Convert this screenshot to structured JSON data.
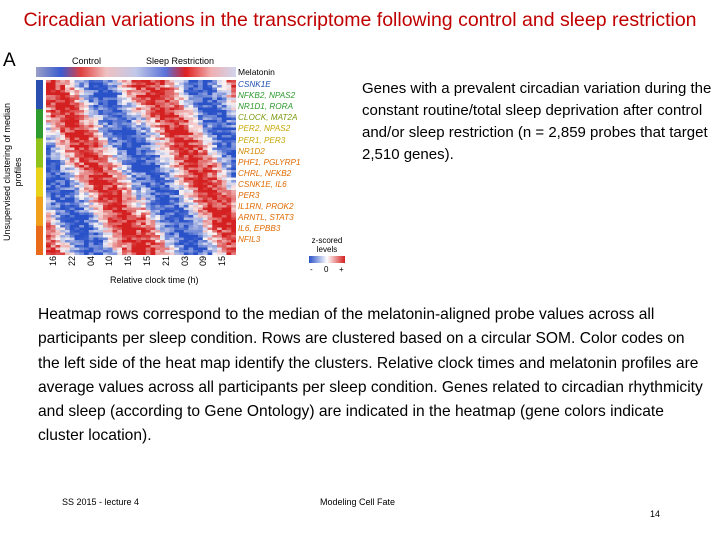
{
  "slide": {
    "title": "Circadian variations in the transcriptome following control and sleep restriction",
    "panel_letter": "A",
    "right_text": "Genes with a prevalent circadian variation during the constant routine/total sleep deprivation after control and/or sleep restriction (n = 2,859 probes that target 2,510 genes).",
    "main_text": "Heatmap rows correspond to the median of the melatonin-aligned probe values across all participants per sleep condition. Rows are clustered based on a circular SOM. Color codes on the left side of the heat map identify the clusters. Relative clock times and melatonin profiles are average values across all participants per sleep condition. Genes related to circadian rhythmicity and sleep (according to Gene Ontology) are indicated in the heatmap (gene colors indicate cluster location).",
    "footer_left": "SS 2015 - lecture 4",
    "footer_center": "Modeling Cell Fate",
    "page_number": "14"
  },
  "figure": {
    "col_labels": [
      "Control",
      "Sleep Restriction"
    ],
    "melatonin_label": "Melatonin",
    "y_axis_title": "Unsupervised clustering of median profiles",
    "x_axis_title": "Relative clock time (h)",
    "x_ticks": [
      "16",
      "22",
      "04",
      "10",
      "16",
      "15",
      "21",
      "03",
      "09",
      "15"
    ],
    "legend_title": "z-scored levels",
    "legend_ticks": [
      "-",
      "0",
      "+"
    ],
    "genes": [
      {
        "label": "CSNK1E",
        "color": "#1f4fb0"
      },
      {
        "label": "NFKB2, NPAS2",
        "color": "#2d9a2d"
      },
      {
        "label": "NR1D1, RORA",
        "color": "#2d9a2d"
      },
      {
        "label": "CLOCK, MAT2A",
        "color": "#7a9a10"
      },
      {
        "label": "PER2, NPAS2",
        "color": "#c8a800"
      },
      {
        "label": "PER1, PER3",
        "color": "#c8a800"
      },
      {
        "label": "NR1D2",
        "color": "#d48a00"
      },
      {
        "label": "PHF1, PGLYRP1",
        "color": "#e06a00"
      },
      {
        "label": "CHRL, NFKB2",
        "color": "#e06a00"
      },
      {
        "label": "CSNK1E, IL6",
        "color": "#e06a00"
      },
      {
        "label": "PER3",
        "color": "#e06a00"
      },
      {
        "label": "IL1RN, PROK2",
        "color": "#e06a00"
      },
      {
        "label": "ARNTL, STAT3",
        "color": "#e06a00"
      },
      {
        "label": "IL6, EPBB3",
        "color": "#e06a00"
      },
      {
        "label": "NFIL3",
        "color": "#e06a00"
      }
    ],
    "cluster_colors": [
      "#2b4fb0",
      "#2e9b2e",
      "#8fc21a",
      "#e8d21a",
      "#f0a01a",
      "#e86a1a"
    ],
    "colors": {
      "title": "#c00000",
      "high": "#d42020",
      "low": "#2a52c8",
      "control_bar": "#3a5bd0",
      "restriction_bar": "#d42020"
    }
  }
}
